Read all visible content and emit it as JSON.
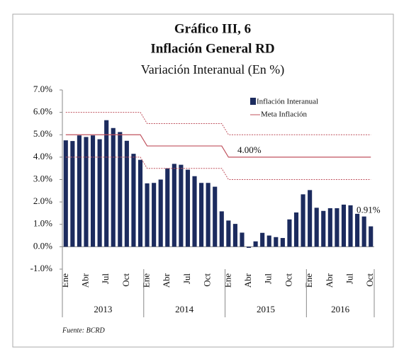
{
  "chart_data": {
    "type": "bar",
    "title": "Gráfico III, 6",
    "subtitle": "Inflación General RD",
    "subtitle2": "Variación Interanual (En %)",
    "source": "Fuente: BCRD",
    "categories": [
      "Ene",
      null,
      null,
      "Abr",
      null,
      null,
      "Jul",
      null,
      null,
      "Oct",
      null,
      null,
      "Ene",
      null,
      null,
      "Abr",
      null,
      null,
      "Jul",
      null,
      null,
      "Oct",
      null,
      null,
      "Ene",
      null,
      null,
      "Abr",
      null,
      null,
      "Jul",
      null,
      null,
      "Oct",
      null,
      null,
      "Ene",
      null,
      null,
      "Abr",
      null,
      null,
      "Jul",
      null,
      null,
      "Oct"
    ],
    "years": [
      "2013",
      "2014",
      "2015",
      "2016"
    ],
    "series": [
      {
        "name": "Inflación Interanual",
        "color": "#1c2b5e",
        "values": [
          4.75,
          4.72,
          4.97,
          4.9,
          4.97,
          4.8,
          5.65,
          5.3,
          5.12,
          4.73,
          4.15,
          3.88,
          2.83,
          2.85,
          3.0,
          3.5,
          3.7,
          3.66,
          3.44,
          3.15,
          2.85,
          2.85,
          2.68,
          1.58,
          1.17,
          1.02,
          0.63,
          -0.05,
          0.24,
          0.62,
          0.5,
          0.43,
          0.39,
          1.22,
          1.53,
          2.34,
          2.53,
          1.74,
          1.6,
          1.72,
          1.72,
          1.88,
          1.85,
          1.47,
          1.35,
          0.91
        ]
      },
      {
        "name": "Meta Inflación",
        "color": "#c0525e",
        "values": [
          5,
          5,
          5,
          5,
          5,
          5,
          5,
          5,
          5,
          5,
          5,
          5,
          4.5,
          4.5,
          4.5,
          4.5,
          4.5,
          4.5,
          4.5,
          4.5,
          4.5,
          4.5,
          4.5,
          4.5,
          4,
          4,
          4,
          4,
          4,
          4,
          4,
          4,
          4,
          4,
          4,
          4,
          4,
          4,
          4,
          4,
          4,
          4,
          4,
          4,
          4,
          4
        ],
        "upper": [
          6,
          6,
          6,
          6,
          6,
          6,
          6,
          6,
          6,
          6,
          6,
          6,
          5.5,
          5.5,
          5.5,
          5.5,
          5.5,
          5.5,
          5.5,
          5.5,
          5.5,
          5.5,
          5.5,
          5.5,
          5,
          5,
          5,
          5,
          5,
          5,
          5,
          5,
          5,
          5,
          5,
          5,
          5,
          5,
          5,
          5,
          5,
          5,
          5,
          5,
          5,
          5
        ],
        "lower": [
          4,
          4,
          4,
          4,
          4,
          4,
          4,
          4,
          4,
          4,
          4,
          4,
          3.5,
          3.5,
          3.5,
          3.5,
          3.5,
          3.5,
          3.5,
          3.5,
          3.5,
          3.5,
          3.5,
          3.5,
          3,
          3,
          3,
          3,
          3,
          3,
          3,
          3,
          3,
          3,
          3,
          3,
          3,
          3,
          3,
          3,
          3,
          3,
          3,
          3,
          3,
          3
        ]
      }
    ],
    "annotations": [
      {
        "text": "4.00%",
        "value": 4.0
      },
      {
        "text": "0.91%",
        "value": 0.91
      }
    ],
    "ylim": [
      -1,
      7
    ],
    "yticks": [
      {
        "value": -1,
        "label": "-1.0%"
      },
      {
        "value": 0,
        "label": "0.0%"
      },
      {
        "value": 1,
        "label": "1.0%"
      },
      {
        "value": 2,
        "label": "2.0%"
      },
      {
        "value": 3,
        "label": "3.0%"
      },
      {
        "value": 4,
        "label": "4.0%"
      },
      {
        "value": 5,
        "label": "5.0%"
      },
      {
        "value": 6,
        "label": "6.0%"
      },
      {
        "value": 7,
        "label": "7.0%"
      }
    ],
    "legend": "upper right"
  }
}
